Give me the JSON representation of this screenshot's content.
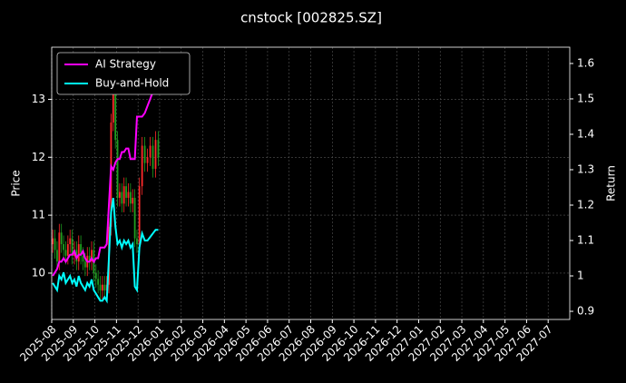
{
  "chart_data": {
    "type": "candlestick",
    "title": "cnstock [002825.SZ]",
    "ylabel": "Price",
    "y2label": "Return",
    "x": [
      "2025-08",
      "2025-08",
      "2025-08",
      "2025-08",
      "2025-08",
      "2025-08",
      "2025-08",
      "2025-08",
      "2025-08",
      "2025-08",
      "2025-09",
      "2025-09",
      "2025-09",
      "2025-09",
      "2025-09",
      "2025-09",
      "2025-09",
      "2025-09",
      "2025-09",
      "2025-09",
      "2025-10",
      "2025-10",
      "2025-10",
      "2025-10",
      "2025-10",
      "2025-10",
      "2025-10",
      "2025-10",
      "2025-10",
      "2025-10",
      "2025-11",
      "2025-11",
      "2025-11",
      "2025-11",
      "2025-11",
      "2025-11",
      "2025-11",
      "2025-11",
      "2025-11",
      "2025-11",
      "2025-12",
      "2025-12",
      "2025-12",
      "2025-12",
      "2025-12",
      "2025-12",
      "2025-12",
      "2025-12"
    ],
    "open": [
      10.5,
      10.6,
      10.4,
      10.2,
      10.7,
      10.5,
      10.4,
      10.3,
      10.5,
      10.6,
      10.3,
      10.4,
      10.2,
      10.5,
      10.3,
      10.2,
      10.1,
      10.3,
      10.2,
      10.4,
      10.0,
      9.9,
      9.8,
      9.7,
      9.8,
      9.7,
      9.8,
      10.8,
      12.6,
      13.1,
      12.3,
      11.3,
      11.4,
      11.2,
      11.5,
      11.3,
      11.4,
      11.2,
      11.3,
      10.6,
      10.5,
      11.5,
      12.2,
      11.9,
      12.0,
      12.2,
      11.8,
      12.3
    ],
    "high": [
      10.75,
      10.75,
      10.55,
      10.85,
      10.85,
      10.65,
      10.55,
      10.65,
      10.75,
      10.75,
      10.55,
      10.55,
      10.65,
      10.65,
      10.45,
      10.35,
      10.45,
      10.45,
      10.55,
      10.55,
      10.15,
      10.05,
      9.95,
      9.95,
      9.95,
      9.95,
      10.95,
      12.75,
      13.25,
      13.25,
      12.45,
      11.55,
      11.55,
      11.65,
      11.65,
      11.55,
      11.55,
      11.45,
      11.45,
      10.75,
      11.65,
      12.35,
      12.35,
      12.15,
      12.35,
      12.35,
      12.45,
      12.45
    ],
    "low": [
      10.35,
      10.25,
      10.05,
      10.05,
      10.35,
      10.25,
      10.15,
      10.15,
      10.35,
      10.15,
      10.15,
      10.05,
      10.05,
      10.15,
      10.05,
      9.95,
      9.95,
      10.05,
      10.05,
      9.85,
      9.75,
      9.65,
      9.55,
      9.55,
      9.55,
      9.55,
      9.65,
      10.65,
      12.45,
      12.15,
      11.15,
      11.15,
      11.05,
      11.05,
      11.15,
      11.15,
      11.05,
      11.05,
      10.45,
      10.35,
      10.35,
      11.35,
      11.75,
      11.75,
      11.85,
      11.65,
      11.65,
      11.85
    ],
    "close": [
      10.6,
      10.4,
      10.2,
      10.7,
      10.5,
      10.4,
      10.3,
      10.5,
      10.6,
      10.3,
      10.4,
      10.2,
      10.5,
      10.3,
      10.2,
      10.1,
      10.3,
      10.2,
      10.4,
      10.0,
      9.9,
      9.8,
      9.7,
      9.8,
      9.7,
      9.8,
      10.8,
      12.6,
      13.1,
      12.3,
      11.3,
      11.4,
      11.2,
      11.5,
      11.3,
      11.4,
      11.2,
      11.3,
      10.6,
      10.5,
      11.5,
      12.2,
      11.9,
      12.0,
      12.2,
      11.8,
      12.3,
      12.0
    ],
    "up_color": "#ff2a2a",
    "down_color": "#1f9e1f",
    "series": [
      {
        "name": "AI Strategy",
        "color": "#ff00ff",
        "axis": "y2",
        "values": [
          1.0,
          1.01,
          1.02,
          1.04,
          1.04,
          1.05,
          1.04,
          1.05,
          1.06,
          1.06,
          1.07,
          1.05,
          1.06,
          1.06,
          1.07,
          1.05,
          1.04,
          1.04,
          1.05,
          1.04,
          1.05,
          1.05,
          1.08,
          1.08,
          1.08,
          1.09,
          1.2,
          1.31,
          1.3,
          1.32,
          1.33,
          1.33,
          1.35,
          1.35,
          1.36,
          1.36,
          1.33,
          1.33,
          1.33,
          1.45,
          1.45,
          1.45,
          1.46,
          1.48,
          1.5,
          1.52,
          1.52,
          1.53
        ]
      },
      {
        "name": "Buy-and-Hold",
        "color": "#00ffff",
        "axis": "y2",
        "values": [
          0.98,
          0.97,
          0.96,
          1.0,
          0.99,
          1.01,
          0.98,
          0.99,
          1.0,
          0.98,
          0.99,
          0.97,
          1.0,
          0.98,
          0.97,
          0.96,
          0.98,
          0.97,
          0.99,
          0.96,
          0.95,
          0.94,
          0.93,
          0.93,
          0.94,
          0.93,
          1.05,
          1.18,
          1.22,
          1.14,
          1.09,
          1.1,
          1.08,
          1.1,
          1.09,
          1.1,
          1.08,
          1.09,
          0.97,
          0.96,
          1.08,
          1.12,
          1.1,
          1.1,
          1.11,
          1.12,
          1.13,
          1.13
        ]
      }
    ],
    "ylim": [
      9.2,
      13.9
    ],
    "yticks": [
      10,
      11,
      12,
      13
    ],
    "y2lim": [
      0.877,
      1.646
    ],
    "y2ticks": [
      0.9,
      1.0,
      1.1,
      1.2,
      1.3,
      1.4,
      1.5,
      1.6
    ],
    "xlim": [
      "2025-08",
      "2027-08"
    ],
    "xticks": [
      "2025-08",
      "2025-09",
      "2025-10",
      "2025-11",
      "2025-12",
      "2026-01",
      "2026-02",
      "2026-03",
      "2026-04",
      "2026-05",
      "2026-06",
      "2026-07",
      "2026-08",
      "2026-09",
      "2026-10",
      "2026-11",
      "2026-12",
      "2027-01",
      "2027-02",
      "2027-03",
      "2027-04",
      "2027-05",
      "2027-06",
      "2027-07"
    ],
    "grid": true,
    "legend": "upper left"
  }
}
